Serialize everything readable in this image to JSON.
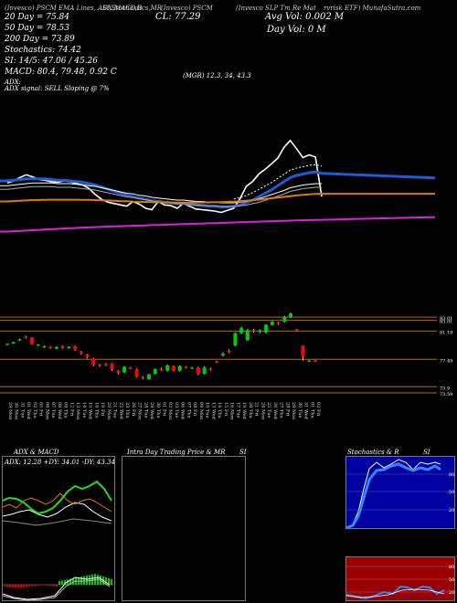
{
  "header": {
    "line1a": "(Invesco) PSCM ",
    "line1b": "(Invesco SLP Tm Re Mat",
    "line1c": "rvrisk ETF) MunafaSutra.com",
    "overlay1": "(Invesco) PSCM EMA Lines, ADX,MACD,B",
    "overlay2": "SI,Stochastics,MR",
    "ma20": "20 Day = 75.84",
    "ma50": "50 Day = 78.53",
    "ma200": "200 Day = 73.89",
    "stoch": "Stochastics: 74.42",
    "si": "SI: 14/5: 47.06 / 45.26",
    "macd": "MACD: 80.4, 79.48, 0.92  C",
    "cl": "CL: 77.29",
    "avgvol": "Avg Vol: 0.002  M",
    "dayvol": "Day Vol: 0  M",
    "adx_line": "ADX:",
    "adx_vals": "(MGR) 12.3,  34,  43.3",
    "adx_signal": "ADX  signal: SELL  Sloping @ 7%"
  },
  "price_labels": [
    {
      "text": "83.01",
      "level": 83.01
    },
    {
      "text": "83.01",
      "level": 82.6
    },
    {
      "text": "81.19",
      "level": 81.19
    },
    {
      "text": "77.49",
      "level": 77.49
    },
    {
      "text": "73.9",
      "level": 73.9
    },
    {
      "text": "73.59",
      "level": 73.1
    }
  ],
  "dates": [
    "29 Mon",
    "30 Mon",
    "31 Tue",
    "01 Wed",
    "02 Thu",
    "05 Fri",
    "06 Mon",
    "07 Tue",
    "08 Wed",
    "09 Thu",
    "12 Fri",
    "13 Mon",
    "14 Tue",
    "15 Wed",
    "16 Thu",
    "19 Fri",
    "20 Mon",
    "21 Tue",
    "22 Wed",
    "23 Thu",
    "26 Fri",
    "27 Mon",
    "28 Tue",
    "29 Wed",
    "30 Thu",
    "01 Fri",
    "02 Mon",
    "03 Tue",
    "06 Wed",
    "07 Thu",
    "08 Fri",
    "09 Mon",
    "10 Tue",
    "13 Wed",
    "14 Thu",
    "15 Fri",
    "16 Mon",
    "17 Tue",
    "19 Wed",
    "20 Thu",
    "21 Fri",
    "24 Mon",
    "25 Tue",
    "26 Wed",
    "27 Thu",
    "28 Fri",
    "29 Mon",
    "30 Tue",
    "31 Wed",
    "01 Thu",
    "02 Fri"
  ],
  "panels": {
    "adx_title": "ADX  & MACD",
    "adx_vals": "ADX: 12.28  +DY: 34.01  -DY: 43.34",
    "intra_title": "Intra  Day Trading Price  & MR",
    "intra_si": "SI",
    "stoch_title": "Stochastics & R",
    "stoch_si": "SI",
    "stoch_ticks": [
      "80",
      "50",
      "20"
    ],
    "si_ticks": [
      "80",
      "50",
      "20"
    ]
  },
  "colors": {
    "up": "#00cc00",
    "down": "#ff0000",
    "price": "#ffffff",
    "ema_blue": "#1e5bd6",
    "ema_orange": "#e07a00",
    "ema_magenta": "#e020e0",
    "grid_orange": "#b86a00",
    "si_bg": "#990000",
    "stoch_bg": "#0000a0"
  },
  "chart_data": {
    "type": "line",
    "title": "",
    "series": [
      {
        "name": "Price",
        "values": [
          79.3,
          79.6,
          80.1,
          80.5,
          80.2,
          79.8,
          79.7,
          79.5,
          79.4,
          79.6,
          79.5,
          79.2,
          79.0,
          78.5,
          77.6,
          76.9,
          76.5,
          76.3,
          76.1,
          75.9,
          76.6,
          76.2,
          75.6,
          75.4,
          76.6,
          76.1,
          76.0,
          75.6,
          76.3,
          75.9,
          75.5,
          75.4,
          75.3,
          75.2,
          75.0,
          75.3,
          75.6,
          77.0,
          78.8,
          79.5,
          80.6,
          81.3,
          82.1,
          82.9,
          84.5,
          85.5,
          84.3,
          83.0,
          83.4,
          83.1,
          77.3
        ]
      },
      {
        "name": "",
        "values": [
          79.6,
          79.7,
          79.8,
          79.9,
          79.9,
          79.9,
          79.9,
          79.8,
          79.7,
          79.7,
          79.6,
          79.5,
          79.4,
          79.2,
          79.0,
          78.7,
          78.4,
          78.1,
          77.8,
          77.5,
          77.3,
          77.1,
          76.9,
          76.7,
          76.6,
          76.5,
          76.4,
          76.3,
          76.3,
          76.2,
          76.1,
          76.0,
          75.9,
          75.9,
          75.8,
          75.8,
          75.9,
          76.1,
          76.4,
          76.8,
          77.3,
          77.8,
          78.3,
          78.9,
          79.5,
          80.1,
          80.4,
          80.6,
          80.8,
          80.9,
          80.7
        ]
      },
      {
        "name": "",
        "values": [
          78.9,
          79.0,
          79.1,
          79.2,
          79.3,
          79.3,
          79.3,
          79.3,
          79.2,
          79.2,
          79.2,
          79.1,
          79.0,
          78.9,
          78.8,
          78.6,
          78.4,
          78.2,
          78.0,
          77.8,
          77.7,
          77.5,
          77.4,
          77.2,
          77.1,
          77.0,
          76.9,
          76.8,
          76.8,
          76.7,
          76.6,
          76.6,
          76.5,
          76.5,
          76.4,
          76.4,
          76.4,
          76.5,
          76.6,
          76.8,
          77.0,
          77.3,
          77.6,
          77.9,
          78.2,
          78.6,
          78.8,
          79.0,
          79.1,
          79.2,
          79.2
        ]
      },
      {
        "name": "",
        "values": [
          76.6,
          76.65,
          76.7,
          76.75,
          76.8,
          76.82,
          76.84,
          76.85,
          76.86,
          76.86,
          76.86,
          76.85,
          76.84,
          76.83,
          76.8,
          76.77,
          76.73,
          76.7,
          76.66,
          76.62,
          76.58,
          76.55,
          76.52,
          76.5,
          76.48,
          76.46,
          76.45,
          76.44,
          76.44,
          76.44,
          76.45,
          76.46,
          76.47,
          76.49,
          76.51,
          76.54,
          76.58,
          76.63,
          76.7,
          76.78,
          76.87,
          76.96,
          77.06,
          77.16,
          77.27,
          77.38,
          77.48,
          77.56,
          77.63,
          77.7,
          77.72
        ]
      },
      {
        "name": "",
        "values": [
          72.2,
          72.25,
          72.3,
          72.35,
          72.4,
          72.45,
          72.5,
          72.55,
          72.6,
          72.65,
          72.7,
          72.74,
          72.78,
          72.82,
          72.86,
          72.9,
          72.93,
          72.96,
          72.99,
          73.02,
          73.05,
          73.08,
          73.11,
          73.14,
          73.17,
          73.2,
          73.23,
          73.26,
          73.29,
          73.32,
          73.35,
          73.38,
          73.41,
          73.44,
          73.47,
          73.5,
          73.53,
          73.56,
          73.59,
          73.62,
          73.65,
          73.68,
          73.71,
          73.74,
          73.77,
          73.8,
          73.83,
          73.86,
          73.88,
          73.9,
          73.92
        ]
      }
    ],
    "candles": [
      {
        "o": 79.5,
        "c": 79.5,
        "h": 79.6,
        "l": 79.4
      },
      {
        "o": 79.6,
        "c": 79.7,
        "h": 79.8,
        "l": 79.5
      },
      {
        "o": 80.0,
        "c": 80.1,
        "h": 80.2,
        "l": 79.9
      },
      {
        "o": 80.4,
        "c": 80.3,
        "h": 80.6,
        "l": 80.2
      },
      {
        "o": 80.3,
        "c": 79.5,
        "h": 80.4,
        "l": 79.4
      },
      {
        "o": 79.4,
        "c": 79.4,
        "h": 79.5,
        "l": 79.3
      },
      {
        "o": 79.1,
        "c": 79.2,
        "h": 79.3,
        "l": 79.0
      },
      {
        "o": 79.1,
        "c": 79.0,
        "h": 79.2,
        "l": 78.9
      },
      {
        "o": 78.9,
        "c": 79.1,
        "h": 79.2,
        "l": 78.8
      },
      {
        "o": 79.2,
        "c": 79.0,
        "h": 79.3,
        "l": 78.9
      },
      {
        "o": 79.0,
        "c": 79.1,
        "h": 79.2,
        "l": 78.9
      },
      {
        "o": 79.2,
        "c": 78.8,
        "h": 79.3,
        "l": 78.6
      },
      {
        "o": 78.5,
        "c": 78.3,
        "h": 78.6,
        "l": 78.1
      },
      {
        "o": 78.1,
        "c": 77.8,
        "h": 78.2,
        "l": 77.6
      },
      {
        "o": 77.6,
        "c": 76.8,
        "h": 77.7,
        "l": 76.6
      },
      {
        "o": 76.8,
        "c": 76.7,
        "h": 76.9,
        "l": 76.5
      },
      {
        "o": 76.9,
        "c": 76.8,
        "h": 77.0,
        "l": 76.6
      },
      {
        "o": 76.9,
        "c": 76.2,
        "h": 77.0,
        "l": 76.0
      },
      {
        "o": 76.0,
        "c": 75.7,
        "h": 76.1,
        "l": 75.5
      },
      {
        "o": 75.8,
        "c": 76.5,
        "h": 76.6,
        "l": 75.7
      },
      {
        "o": 76.4,
        "c": 76.3,
        "h": 76.5,
        "l": 76.2
      },
      {
        "o": 76.2,
        "c": 75.2,
        "h": 76.3,
        "l": 75.1
      },
      {
        "o": 75.2,
        "c": 75.1,
        "h": 75.3,
        "l": 74.9
      },
      {
        "o": 74.9,
        "c": 75.5,
        "h": 75.6,
        "l": 74.8
      },
      {
        "o": 75.6,
        "c": 76.2,
        "h": 76.3,
        "l": 75.5
      },
      {
        "o": 76.2,
        "c": 76.1,
        "h": 76.4,
        "l": 76.0
      },
      {
        "o": 76.0,
        "c": 76.7,
        "h": 76.8,
        "l": 75.9
      },
      {
        "o": 76.6,
        "c": 76.0,
        "h": 76.7,
        "l": 75.9
      },
      {
        "o": 76.0,
        "c": 76.6,
        "h": 76.7,
        "l": 75.9
      },
      {
        "o": 76.5,
        "c": 76.4,
        "h": 76.6,
        "l": 76.3
      },
      {
        "o": 76.4,
        "c": 76.4,
        "h": 76.5,
        "l": 76.3
      },
      {
        "o": 76.4,
        "c": 75.6,
        "h": 76.5,
        "l": 75.4
      },
      {
        "o": 75.6,
        "c": 76.4,
        "h": 76.6,
        "l": 75.5
      },
      {
        "o": 76.3,
        "c": 76.2,
        "h": 76.4,
        "l": 76.0
      },
      {
        "o": 77.2,
        "c": 77.1,
        "h": 77.3,
        "l": 77.0
      },
      {
        "o": 78.0,
        "c": 78.2,
        "h": 78.4,
        "l": 77.9
      },
      {
        "o": 78.6,
        "c": 78.5,
        "h": 78.8,
        "l": 78.3
      },
      {
        "o": 79.3,
        "c": 80.9,
        "h": 81.0,
        "l": 79.2
      },
      {
        "o": 80.9,
        "c": 81.6,
        "h": 81.8,
        "l": 80.8
      },
      {
        "o": 80.0,
        "c": 81.3,
        "h": 81.5,
        "l": 79.9
      },
      {
        "o": 81.3,
        "c": 81.2,
        "h": 81.5,
        "l": 81.0
      },
      {
        "o": 81.1,
        "c": 81.3,
        "h": 81.4,
        "l": 80.9
      },
      {
        "o": 81.0,
        "c": 82.0,
        "h": 82.1,
        "l": 80.9
      },
      {
        "o": 82.0,
        "c": 82.4,
        "h": 82.5,
        "l": 81.9
      },
      {
        "o": 82.3,
        "c": 82.2,
        "h": 82.4,
        "l": 82.0
      },
      {
        "o": 82.4,
        "c": 83.0,
        "h": 83.2,
        "l": 82.3
      },
      {
        "o": 83.0,
        "c": 83.5,
        "h": 83.6,
        "l": 82.9
      },
      {
        "o": 81.4,
        "c": 81.3,
        "h": 81.5,
        "l": 81.2
      },
      {
        "o": 79.2,
        "c": 77.8,
        "h": 79.3,
        "l": 77.3
      },
      {
        "o": 77.3,
        "c": 77.3,
        "h": 77.4,
        "l": 77.2
      },
      {
        "o": 77.3,
        "c": 77.29,
        "h": 77.4,
        "l": 77.2
      }
    ],
    "ylim": [
      72.5,
      86.5
    ]
  }
}
